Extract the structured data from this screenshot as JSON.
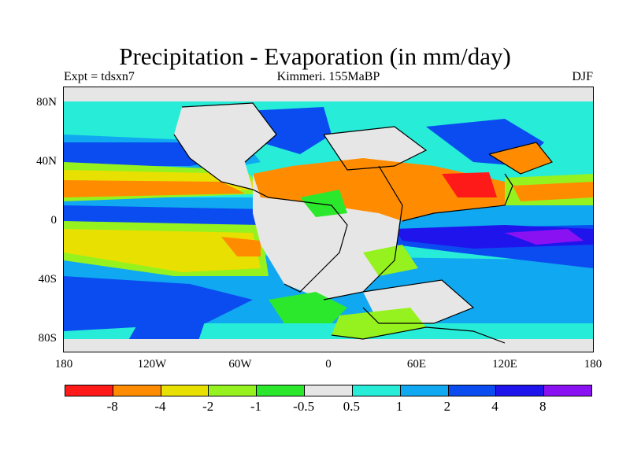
{
  "title": "Precipitation - Evaporation (in mm/day)",
  "subtitle_left": "Expt = tdsxn7",
  "subtitle_center": "Kimmeri. 155MaBP",
  "subtitle_right": "DJF",
  "y_ticks": [
    "80N",
    "40N",
    "0",
    "40S",
    "80S"
  ],
  "x_ticks": [
    "180",
    "120W",
    "60W",
    "0",
    "60E",
    "120E",
    "180"
  ],
  "colorbar": {
    "colors": [
      "#ff1a1a",
      "#ff8c00",
      "#e8e000",
      "#96f21e",
      "#2ce82c",
      "#e6e6e6",
      "#26ecd8",
      "#10a8f0",
      "#0a4cf0",
      "#2014ec",
      "#8a12f2"
    ],
    "labels": [
      "-8",
      "-4",
      "-2",
      "-1",
      "-0.5",
      "0.5",
      "1",
      "2",
      "4",
      "8"
    ]
  },
  "map_colors": {
    "gray": "#e6e6e6",
    "cyan": "#26ecd8",
    "lightblue": "#10a8f0",
    "blue": "#0a4cf0",
    "deepblue": "#2014ec",
    "purple": "#8a12f2",
    "green": "#2ce82c",
    "lightgreen": "#96f21e",
    "yellow": "#e8e000",
    "orange": "#ff8c00",
    "red": "#ff1a1a"
  }
}
